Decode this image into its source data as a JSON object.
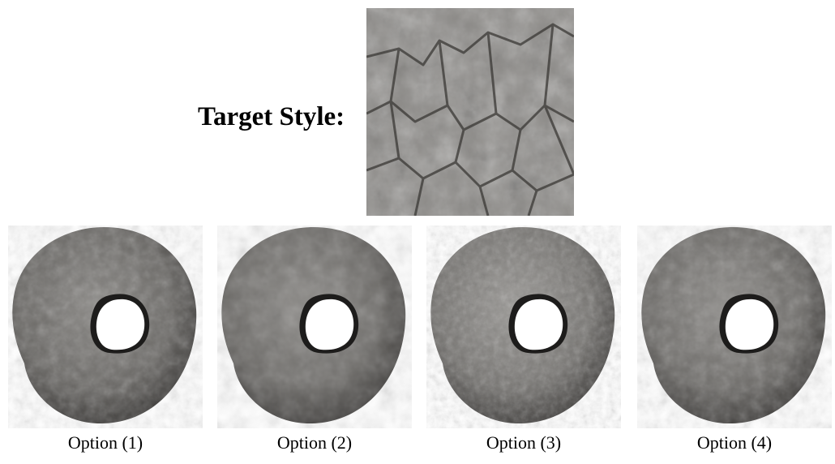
{
  "target": {
    "label": "Target Style:"
  },
  "options": [
    {
      "label": "Option (1)"
    },
    {
      "label": "Option (2)"
    },
    {
      "label": "Option (3)"
    },
    {
      "label": "Option (4)"
    }
  ]
}
